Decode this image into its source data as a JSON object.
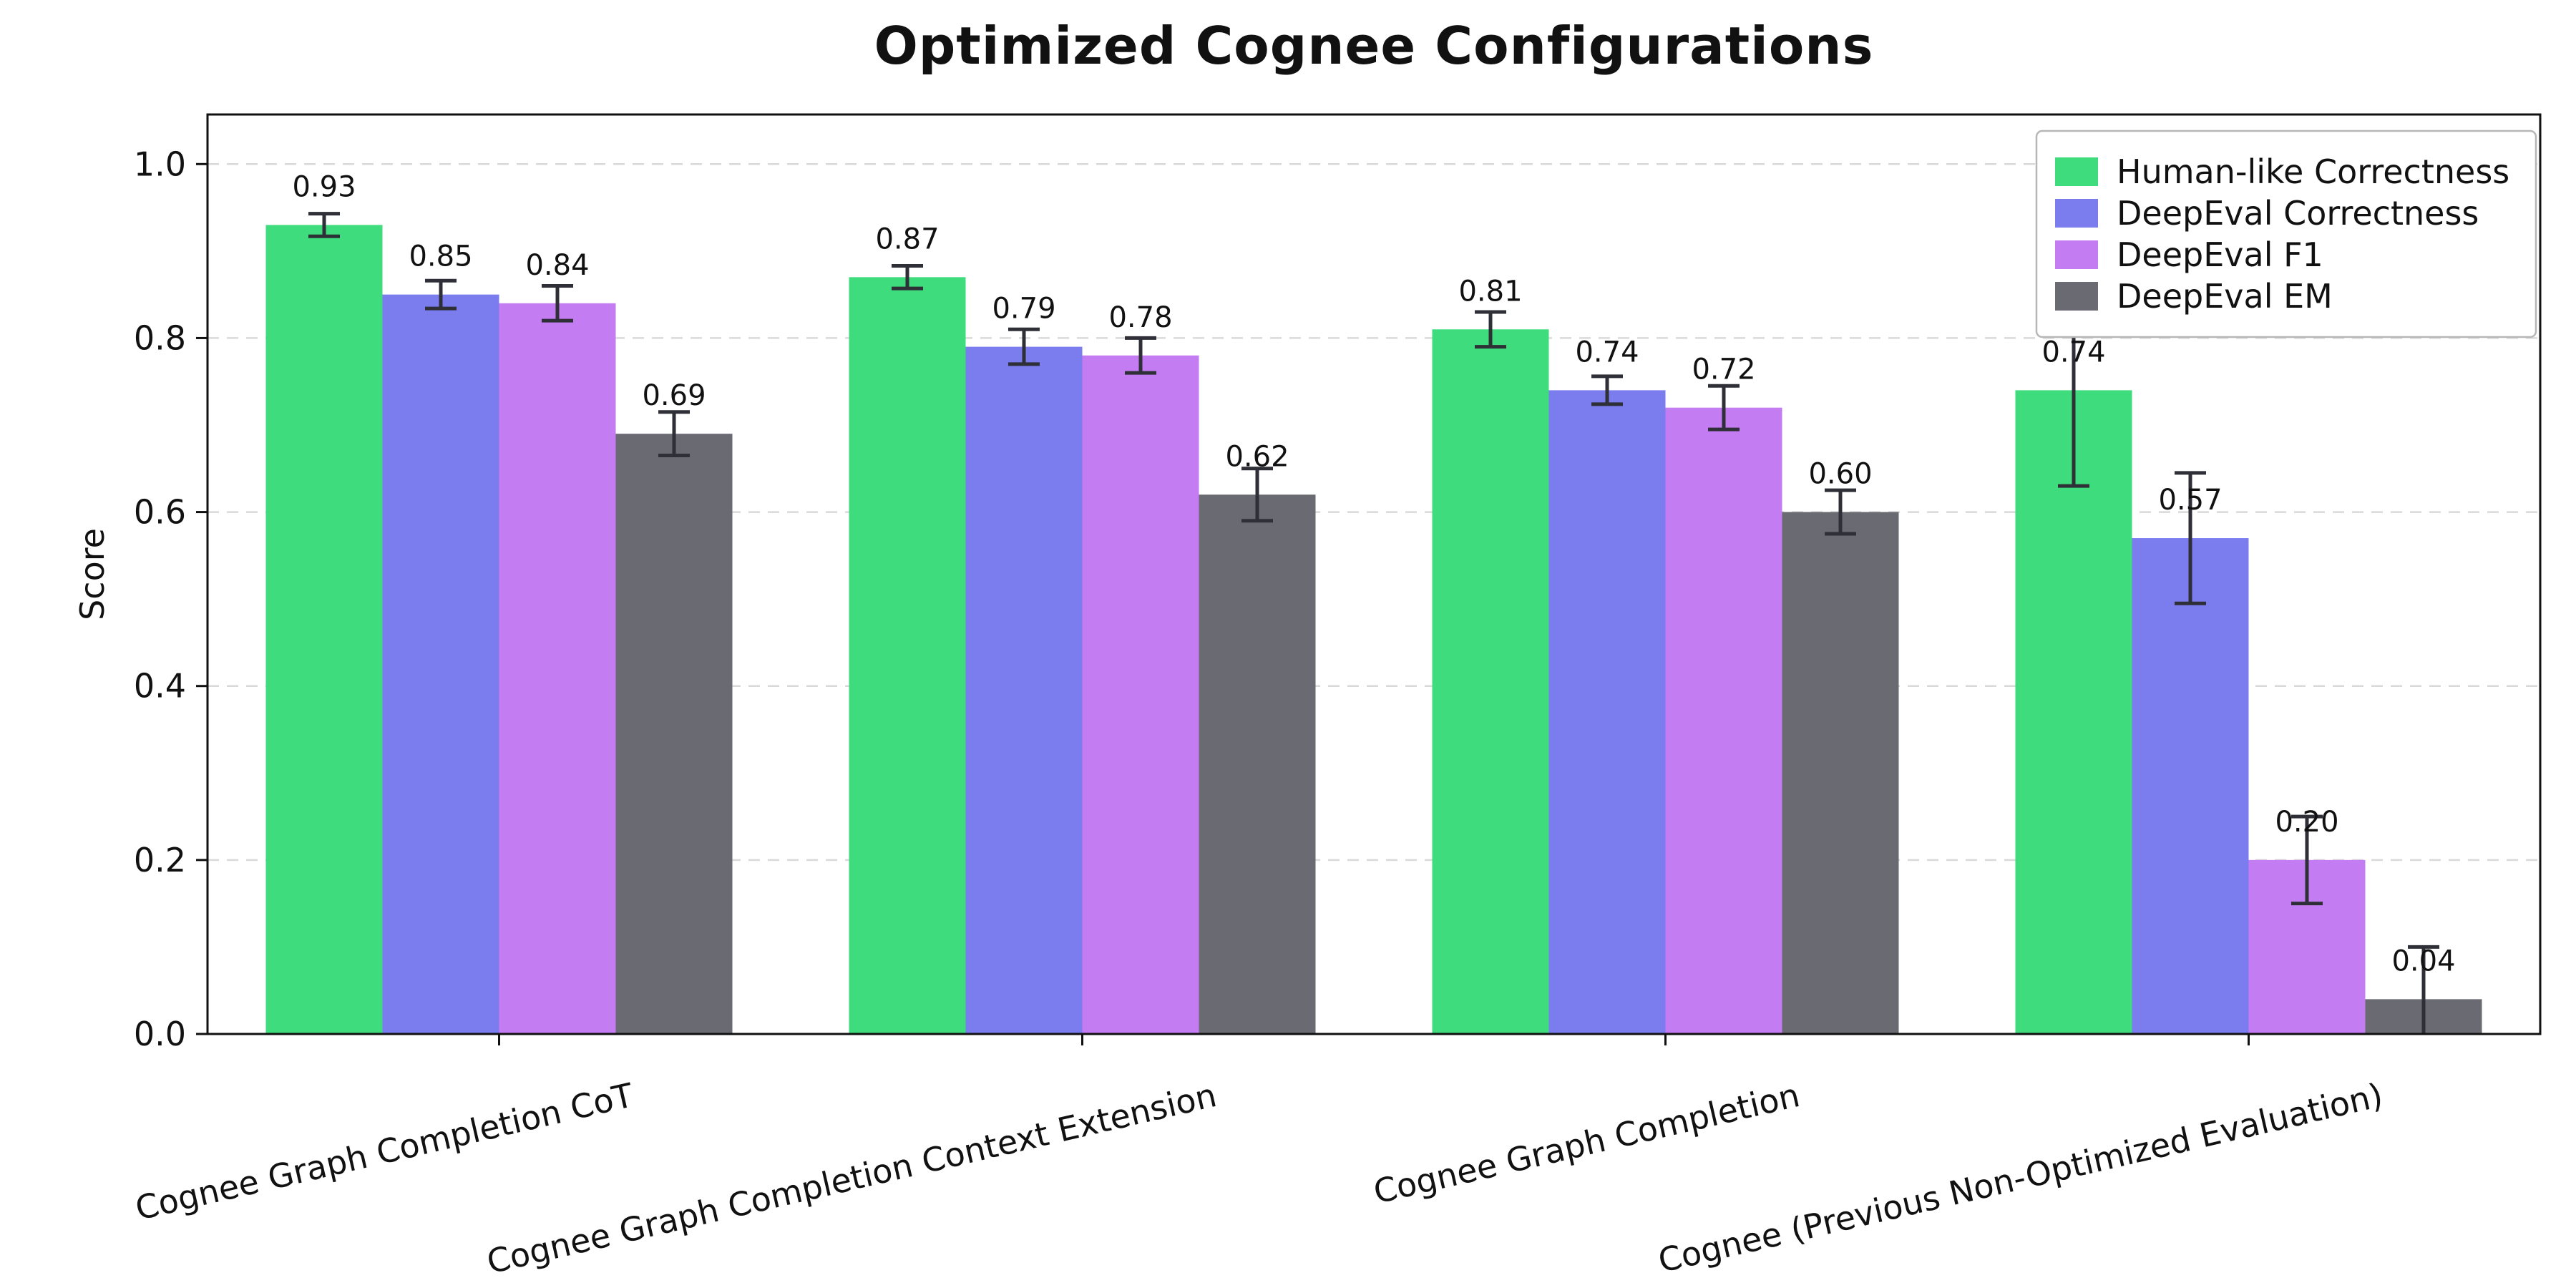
{
  "chart_data": {
    "type": "bar",
    "title": "Optimized Cognee Configurations",
    "xlabel": "",
    "ylabel": "Score",
    "ylim": [
      0,
      1.057
    ],
    "yticks": [
      0.0,
      0.2,
      0.4,
      0.6,
      0.8,
      1.0
    ],
    "grid": true,
    "grid_style": "dashed",
    "legend_position": "upper right",
    "categories": [
      "Cognee Graph Completion CoT",
      "Cognee Graph Completion Context Extension",
      "Cognee Graph Completion",
      "Cognee (Previous Non-Optimized Evaluation)"
    ],
    "series": [
      {
        "name": "Human-like Correctness",
        "color": "#3edc7c",
        "values": [
          0.93,
          0.87,
          0.81,
          0.74
        ],
        "errors": [
          0.013,
          0.013,
          0.02,
          0.11
        ]
      },
      {
        "name": "DeepEval Correctness",
        "color": "#7b7def",
        "values": [
          0.85,
          0.79,
          0.74,
          0.57
        ],
        "errors": [
          0.016,
          0.02,
          0.016,
          0.075
        ]
      },
      {
        "name": "DeepEval F1",
        "color": "#c47cf2",
        "values": [
          0.84,
          0.78,
          0.72,
          0.2
        ],
        "errors": [
          0.02,
          0.02,
          0.025,
          0.05
        ]
      },
      {
        "name": "DeepEval EM",
        "color": "#6a6a73",
        "values": [
          0.69,
          0.62,
          0.6,
          0.04
        ],
        "errors": [
          0.025,
          0.03,
          0.025,
          0.06
        ]
      }
    ],
    "bar_label_format": "0.00",
    "errorbar_color": "#2f2f38",
    "axis_color": "#111111",
    "grid_color": "#d9d9d9",
    "background": "#ffffff"
  }
}
